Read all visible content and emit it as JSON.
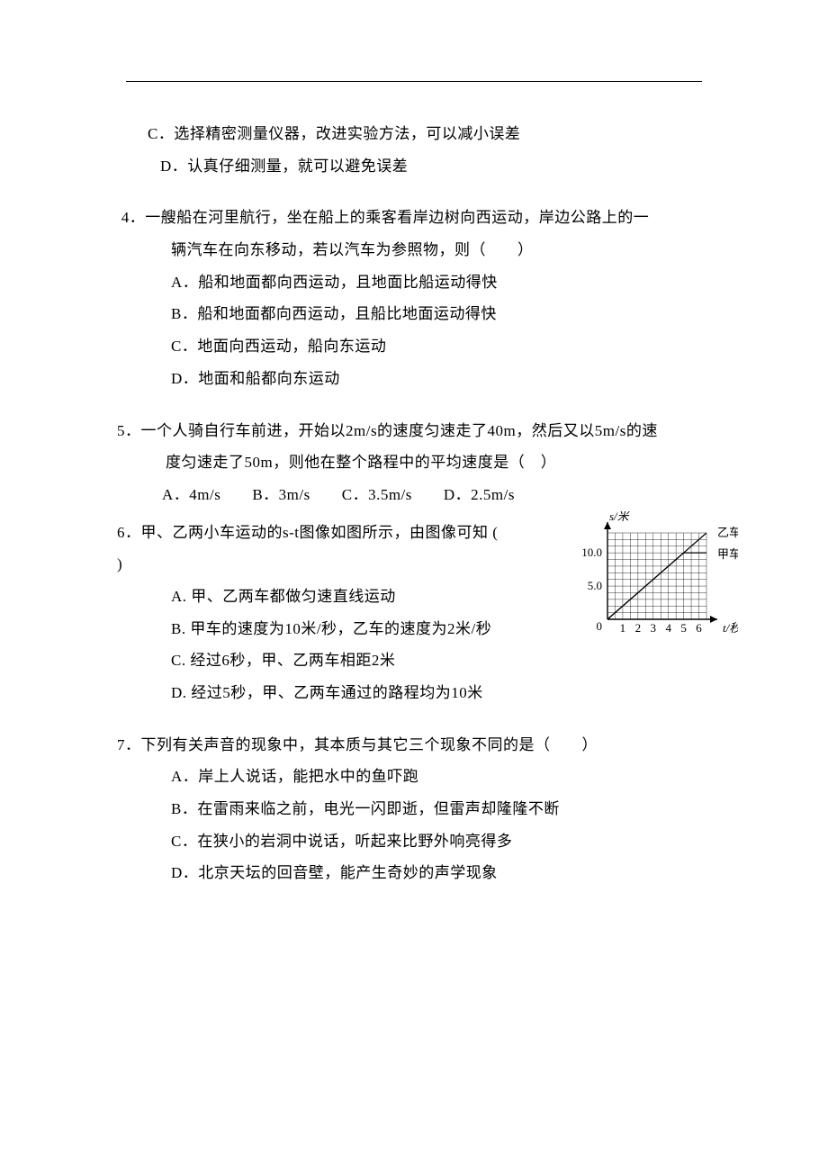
{
  "q3": {
    "C": "C．选择精密测量仪器，改进实验方法，可以减小误差",
    "D": "D．认真仔细测量，就可以避免误差"
  },
  "q4": {
    "stem1": " 4．一艘船在河里航行，坐在船上的乘客看岸边树向西运动，岸边公路上的一",
    "stem2": "辆汽车在向东移动，若以汽车为参照物，则（　　）",
    "A": "A．船和地面都向西运动，且地面比船运动得快",
    "B": "B．船和地面都向西运动，且船比地面运动得快",
    "C": "C．地面向西运动，船向东运动",
    "D": "D．地面和船都向东运动"
  },
  "q5": {
    "stem1": "5．一个人骑自行车前进，开始以2m/s的速度匀速走了40m，然后又以5m/s的速",
    "stem2": "度匀速走了50m，则他在整个路程中的平均速度是（　）",
    "options": "A．4m/s　　B．3m/s　　C．3.5m/s　　D．2.5m/s"
  },
  "q6": {
    "stem1": "6．甲、乙两小车运动的s-t图像如图所示，由图像可知 (　",
    "stem2": ")",
    "A": "A. 甲、乙两车都做匀速直线运动",
    "B": "B. 甲车的速度为10米/秒，乙车的速度为2米/秒",
    "C": "C. 经过6秒，甲、乙两车相距2米",
    "D": "D. 经过5秒，甲、乙两车通过的路程均为10米"
  },
  "q7": {
    "stem": "7．下列有关声音的现象中，其本质与其它三个现象不同的是（　　）",
    "A": "A．岸上人说话，能把水中的鱼吓跑",
    "B": "B．在雷雨来临之前，电光一闪即逝，但雷声却隆隆不断",
    "C": "C．在狭小的岩洞中说话，听起来比野外响亮得多",
    "D": "D．北京天坛的回音壁，能产生奇妙的声学现象"
  },
  "chart": {
    "type": "line",
    "width": 180,
    "height": 140,
    "x_axis_label": "t/秒",
    "y_axis_label": "s/米",
    "x_ticks": [
      1,
      2,
      3,
      4,
      5,
      6
    ],
    "y_ticks_labels": [
      "5.0",
      "10.0"
    ],
    "y_ticks_values": [
      5.0,
      10.0
    ],
    "xlim": [
      0,
      6.5
    ],
    "ylim": [
      0,
      13
    ],
    "grid_color": "#000000",
    "grid_minor": true,
    "background_color": "#ffffff",
    "axis_color": "#000000",
    "font_size": 13,
    "series": [
      {
        "name": "乙车",
        "label": "乙车",
        "color": "#000000",
        "line_width": 1.2,
        "points": [
          [
            0,
            0
          ],
          [
            6.5,
            13
          ]
        ]
      },
      {
        "name": "甲车",
        "label": "甲车",
        "color": "#000000",
        "line_width": 1.2,
        "points": [
          [
            0,
            0
          ],
          [
            5,
            10
          ],
          [
            6.5,
            10
          ]
        ]
      }
    ]
  }
}
